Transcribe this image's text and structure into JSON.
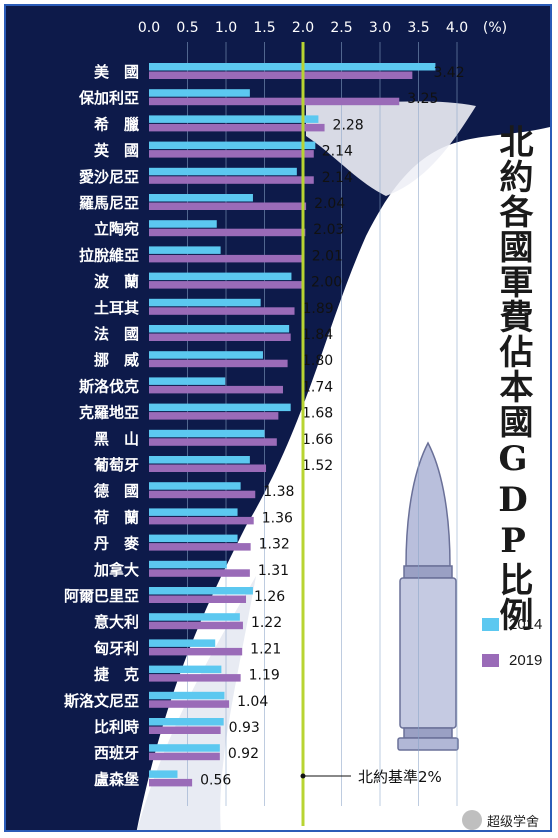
{
  "chart_data": {
    "type": "bar",
    "title": "北約各國軍費佔本國GDP比例",
    "unit_label": "(%)",
    "xlim": [
      0,
      4.0
    ],
    "ticks": [
      "0.0",
      "0.5",
      "1.0",
      "1.5",
      "2.0",
      "2.5",
      "3.0",
      "3.5",
      "4.0"
    ],
    "grid": true,
    "legend_placement": "right",
    "reference_line": {
      "value": 2.0,
      "label": "北約基準2%"
    },
    "categories": [
      "美　國",
      "保加利亞",
      "希　臘",
      "英　國",
      "愛沙尼亞",
      "羅馬尼亞",
      "立陶宛",
      "拉脫維亞",
      "波　蘭",
      "土耳其",
      "法　國",
      "挪　威",
      "斯洛伐克",
      "克羅地亞",
      "黑　山",
      "葡萄牙",
      "德　國",
      "荷　蘭",
      "丹　麥",
      "加拿大",
      "阿爾巴里亞",
      "意大利",
      "匈牙利",
      "捷　克",
      "斯洛文尼亞",
      "比利時",
      "西班牙",
      "盧森堡"
    ],
    "value_labels": [
      "3.42",
      "3.25",
      "2.28",
      "2.14",
      "2.14",
      "2.04",
      "2.03",
      "2.01",
      "2.00",
      "1.89",
      "1.84",
      "1.80",
      "1.74",
      "1.68",
      "1.66",
      "1.52",
      "1.38",
      "1.36",
      "1.32",
      "1.31",
      "1.26",
      "1.22",
      "1.21",
      "1.19",
      "1.04",
      "0.93",
      "0.92",
      "0.56"
    ],
    "series": [
      {
        "name": "2014",
        "color": "#5cc8f0",
        "values": [
          3.72,
          1.31,
          2.2,
          2.16,
          1.92,
          1.35,
          0.88,
          0.93,
          1.85,
          1.45,
          1.82,
          1.48,
          0.99,
          1.84,
          1.5,
          1.31,
          1.19,
          1.15,
          1.15,
          1.01,
          1.35,
          1.18,
          0.86,
          0.94,
          0.98,
          0.97,
          0.92,
          0.37
        ]
      },
      {
        "name": "2019",
        "color": "#9a6bb8",
        "values": [
          3.42,
          3.25,
          2.28,
          2.14,
          2.14,
          2.04,
          2.03,
          2.01,
          2.0,
          1.89,
          1.84,
          1.8,
          1.74,
          1.68,
          1.66,
          1.52,
          1.38,
          1.36,
          1.32,
          1.31,
          1.26,
          1.22,
          1.21,
          1.19,
          1.04,
          0.93,
          0.92,
          0.56
        ]
      }
    ]
  },
  "watermark": {
    "text": "超级学舍",
    "icon": "wechat-icon"
  },
  "colors": {
    "background_dark": "#0d1a4a",
    "reference_line": "#b8d432",
    "grid": "#8aa4c8",
    "label_text": "#ffffff",
    "value_text": "#111111"
  }
}
